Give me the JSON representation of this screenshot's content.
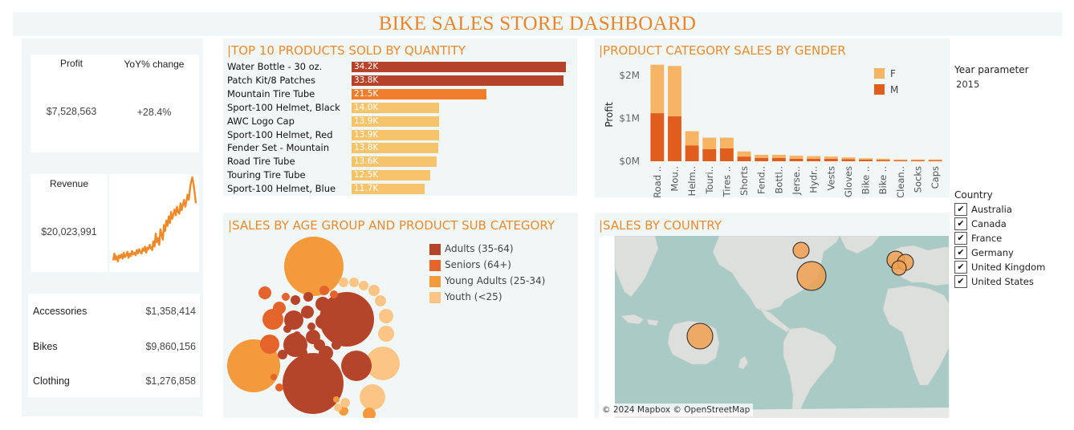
{
  "title": "BIKE SALES STORE DASHBOARD",
  "kpi": {
    "profit_label": "Profit",
    "yoy_label": "YoY% change",
    "profit_value": "$7,528,563",
    "yoy_value": "+28.4%",
    "revenue_label": "Revenue",
    "revenue_value": "$20,023,991",
    "revenue_trend": [
      0.04,
      0.12,
      0.05,
      0.09,
      0.03,
      0.1,
      0.07,
      0.11,
      0.06,
      0.13,
      0.08,
      0.1,
      0.14,
      0.07,
      0.12,
      0.09,
      0.15,
      0.11,
      0.13,
      0.1,
      0.16,
      0.12,
      0.17,
      0.14,
      0.12,
      0.18,
      0.15,
      0.2,
      0.13,
      0.19,
      0.17,
      0.22,
      0.18,
      0.16,
      0.26,
      0.2,
      0.35,
      0.25,
      0.3,
      0.22,
      0.4,
      0.34,
      0.28,
      0.45,
      0.38,
      0.5,
      0.44,
      0.55,
      0.47,
      0.6,
      0.52,
      0.57,
      0.63,
      0.56,
      0.66,
      0.6,
      0.58,
      0.7,
      0.62,
      0.68,
      0.74,
      0.66,
      0.72,
      0.8,
      0.74,
      0.86,
      0.95,
      1.0,
      0.92,
      0.82,
      0.7
    ]
  },
  "categories": [
    {
      "name": "Accessories",
      "value": "$1,358,414"
    },
    {
      "name": "Bikes",
      "value": "$9,860,156"
    },
    {
      "name": "Clothing",
      "value": "$1,276,858"
    }
  ],
  "top_products": {
    "title": "|TOP 10 PRODUCTS SOLD BY QUANTITY",
    "max": 34.2,
    "items": [
      {
        "name": "Water Bottle - 30 oz.",
        "label": "34.2K",
        "value": 34.2,
        "color": "#b5422a"
      },
      {
        "name": "Patch Kit/8 Patches",
        "label": "33.8K",
        "value": 33.8,
        "color": "#b5422a"
      },
      {
        "name": "Mountain Tire Tube",
        "label": "21.5K",
        "value": 21.5,
        "color": "#ef7d2c"
      },
      {
        "name": "Sport-100 Helmet, Black",
        "label": "14.0K",
        "value": 14.0,
        "color": "#f7c46c"
      },
      {
        "name": "AWC Logo Cap",
        "label": "13.9K",
        "value": 13.9,
        "color": "#f7c46c"
      },
      {
        "name": "Sport-100 Helmet, Red",
        "label": "13.9K",
        "value": 13.9,
        "color": "#f7c46c"
      },
      {
        "name": "Fender Set - Mountain",
        "label": "13.8K",
        "value": 13.8,
        "color": "#f7c46c"
      },
      {
        "name": "Road Tire Tube",
        "label": "13.6K",
        "value": 13.6,
        "color": "#f7c46c"
      },
      {
        "name": "Touring Tire Tube",
        "label": "12.5K",
        "value": 12.5,
        "color": "#f7c46c"
      },
      {
        "name": "Sport-100 Helmet, Blue",
        "label": "11.7K",
        "value": 11.7,
        "color": "#f7c46c"
      }
    ]
  },
  "gender_chart": {
    "title": "|PRODUCT CATEGORY SALES BY GENDER",
    "ylabel": "Profit",
    "yticks": [
      "$2M",
      "$1M",
      "$0M"
    ],
    "legend": [
      {
        "name": "F",
        "color": "#f7b465"
      },
      {
        "name": "M",
        "color": "#e05d1e"
      }
    ],
    "chart_data": {
      "type": "bar",
      "stacked": true,
      "ylim": [
        0,
        2.3
      ],
      "categories": [
        "Road ..",
        "Mou..",
        "Helm..",
        "Touri..",
        "Tires ..",
        "Shorts",
        "Fend..",
        "Bottl..",
        "Jerse..",
        "Hydr..",
        "Vests",
        "Gloves",
        "Bike ..",
        "Bike ..",
        "Clean..",
        "Socks",
        "Caps"
      ],
      "series": [
        {
          "name": "M",
          "values": [
            1.12,
            1.05,
            0.37,
            0.28,
            0.3,
            0.11,
            0.08,
            0.08,
            0.06,
            0.06,
            0.06,
            0.05,
            0.04,
            0.03,
            0.015,
            0.01,
            0.008
          ]
        },
        {
          "name": "F",
          "values": [
            1.13,
            1.17,
            0.33,
            0.27,
            0.25,
            0.12,
            0.07,
            0.07,
            0.07,
            0.06,
            0.05,
            0.04,
            0.03,
            0.03,
            0.015,
            0.01,
            0.008
          ]
        }
      ]
    }
  },
  "age_chart": {
    "title": "|SALES BY AGE GROUP AND PRODUCT SUB CATEGORY",
    "legend": [
      {
        "name": "Adults (35-64)",
        "color": "#b5452a"
      },
      {
        "name": "Seniors (64+)",
        "color": "#e4642b"
      },
      {
        "name": "Young Adults (25-34)",
        "color": "#f39a3c"
      },
      {
        "name": "Youth (<25)",
        "color": "#fcc585"
      }
    ]
  },
  "map": {
    "title": "|SALES BY COUNTRY",
    "attribution": "© 2024 Mapbox © OpenStreetMap"
  },
  "year_param": {
    "label": "Year parameter",
    "value": "2015"
  },
  "country_filter": {
    "label": "Country",
    "items": [
      "Australia",
      "Canada",
      "France",
      "Germany",
      "United Kingdom",
      "United States"
    ],
    "check": "✔"
  }
}
